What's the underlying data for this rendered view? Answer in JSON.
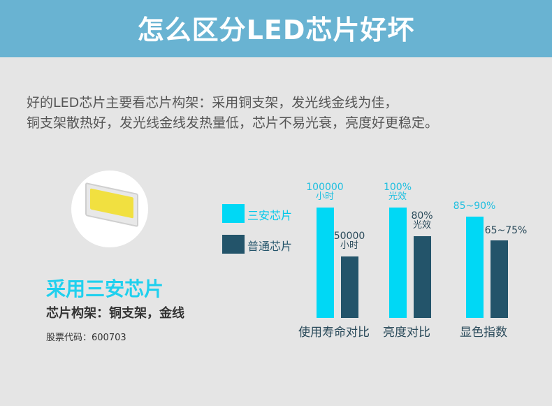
{
  "header": {
    "title": "怎么区分LED芯片好坏"
  },
  "description": {
    "line1": "好的LED芯片主要看芯片构架：采用铜支架，发光线金线为佳，",
    "line2": "铜支架散热好，发光线金线发热量低，芯片不易光衰，亮度好更稳定。"
  },
  "product": {
    "title": "采用三安芯片",
    "subtitle": "芯片构架：铜支架，金线",
    "stock": "股票代码：600703"
  },
  "chart_data": {
    "type": "bar",
    "categories": [
      "使用寿命对比",
      "亮度对比",
      "显色指数"
    ],
    "series": [
      {
        "name": "三安芯片",
        "color": "#00d8f5",
        "labels": [
          [
            "100000",
            "小时"
          ],
          [
            "100%",
            "光效"
          ],
          [
            "85~90%",
            ""
          ]
        ],
        "levels": [
          100,
          100,
          92
        ]
      },
      {
        "name": "普通芯片",
        "color": "#23546a",
        "labels": [
          [
            "50000",
            "小时"
          ],
          [
            "80%",
            "光效"
          ],
          [
            "65~75%",
            ""
          ]
        ],
        "levels": [
          56,
          74,
          70
        ]
      }
    ],
    "legend": "left"
  }
}
